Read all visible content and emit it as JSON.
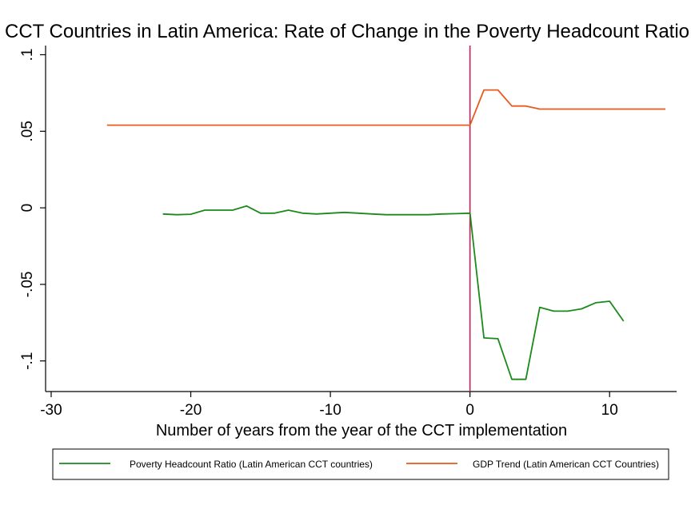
{
  "chart_data": {
    "type": "line",
    "title": "CCT Countries in Latin America: Rate of Change in the Poverty Headcount Ratio",
    "xlabel": "Number of years from the year of the CCT implementation",
    "ylabel": "",
    "xlim": [
      -30.4,
      14.8
    ],
    "ylim": [
      -0.12,
      0.106
    ],
    "x_ticks": [
      -30,
      -20,
      -10,
      0,
      10
    ],
    "x_tick_labels": [
      "-30",
      "-20",
      "-10",
      "0",
      "10"
    ],
    "y_ticks": [
      -0.1,
      -0.05,
      0,
      0.05,
      0.1
    ],
    "y_tick_labels": [
      "-.1",
      "-.05",
      "0",
      ".05",
      ".1"
    ],
    "grid": false,
    "legend_position": "bottom",
    "vertical_reference_line": {
      "x": 0,
      "color": "#cc1f5a"
    },
    "series": [
      {
        "name": "Poverty Headcount Ratio (Latin American CCT countries)",
        "color": "#1b8a1b",
        "points": [
          [
            -22,
            -0.004
          ],
          [
            -21,
            -0.0045
          ],
          [
            -20,
            -0.0042
          ],
          [
            -19,
            -0.0015
          ],
          [
            -18,
            -0.0015
          ],
          [
            -17,
            -0.0015
          ],
          [
            -16,
            0.0012
          ],
          [
            -15,
            -0.0035
          ],
          [
            -14,
            -0.0035
          ],
          [
            -13,
            -0.0015
          ],
          [
            -12,
            -0.0035
          ],
          [
            -11,
            -0.004
          ],
          [
            -10,
            -0.0035
          ],
          [
            -9,
            -0.003
          ],
          [
            -8,
            -0.0035
          ],
          [
            -7,
            -0.004
          ],
          [
            -6,
            -0.0045
          ],
          [
            -5,
            -0.0045
          ],
          [
            -4,
            -0.0045
          ],
          [
            -3,
            -0.0045
          ],
          [
            -2,
            -0.004
          ],
          [
            -1,
            -0.0038
          ],
          [
            0,
            -0.0035
          ],
          [
            1,
            -0.085
          ],
          [
            2,
            -0.0855
          ],
          [
            3,
            -0.112
          ],
          [
            4,
            -0.112
          ],
          [
            5,
            -0.065
          ],
          [
            6,
            -0.0675
          ],
          [
            7,
            -0.0675
          ],
          [
            8,
            -0.066
          ],
          [
            9,
            -0.062
          ],
          [
            10,
            -0.061
          ],
          [
            11,
            -0.074
          ]
        ]
      },
      {
        "name": "GDP Trend (Latin American CCT Countries)",
        "color": "#e85a1c",
        "points": [
          [
            -26,
            0.054
          ],
          [
            -25,
            0.054
          ],
          [
            -20,
            0.054
          ],
          [
            -15,
            0.054
          ],
          [
            -10,
            0.054
          ],
          [
            -5,
            0.054
          ],
          [
            -1,
            0.054
          ],
          [
            0,
            0.054
          ],
          [
            1,
            0.077
          ],
          [
            2,
            0.077
          ],
          [
            3,
            0.0665
          ],
          [
            4,
            0.0665
          ],
          [
            5,
            0.0645
          ],
          [
            6,
            0.0645
          ],
          [
            8,
            0.0645
          ],
          [
            10,
            0.0645
          ],
          [
            12,
            0.0645
          ],
          [
            14,
            0.0645
          ]
        ]
      }
    ]
  }
}
